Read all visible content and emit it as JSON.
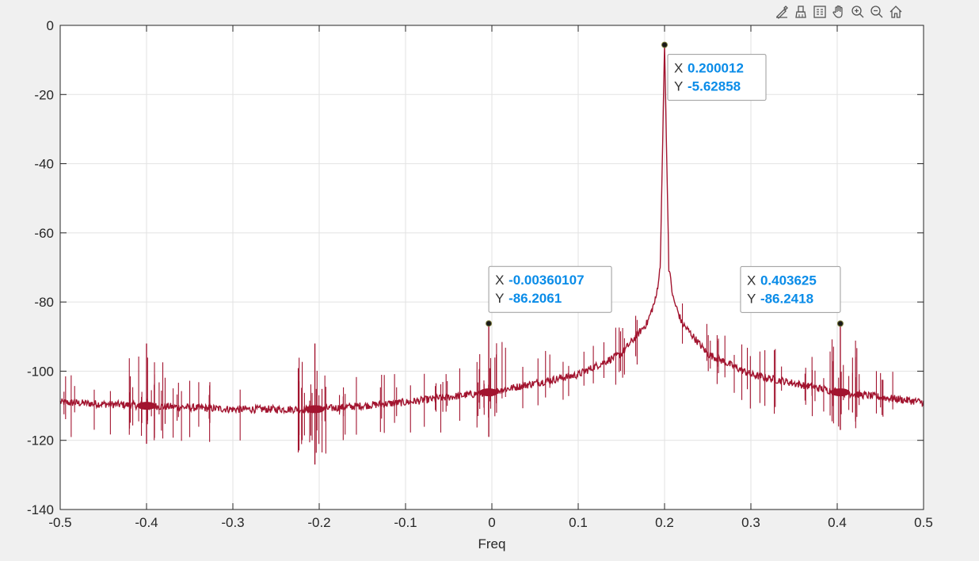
{
  "toolbar": {
    "icons": [
      "edit-plot-icon",
      "brush-icon",
      "legend-icon",
      "pan-icon",
      "zoom-in-icon",
      "zoom-out-icon",
      "home-icon"
    ]
  },
  "colors": {
    "figure_bg": "#f0f0f0",
    "axes_bg": "#ffffff",
    "grid": "#e2e2e2",
    "trace": "#a2142f",
    "datatip_value": "#0a8ce8",
    "datatip_label": "#333333"
  },
  "chart_data": {
    "type": "line",
    "title": "",
    "xlabel": "Freq",
    "ylabel": "",
    "xlim": [
      -0.5,
      0.5
    ],
    "ylim": [
      -140,
      0
    ],
    "xticks": [
      -0.5,
      -0.4,
      -0.3,
      -0.2,
      -0.1,
      0,
      0.1,
      0.2,
      0.3,
      0.4,
      0.5
    ],
    "xtick_labels": [
      "-0.5",
      "-0.4",
      "-0.3",
      "-0.2",
      "-0.1",
      "0",
      "0.1",
      "0.2",
      "0.3",
      "0.4",
      "0.5"
    ],
    "yticks": [
      0,
      -20,
      -40,
      -60,
      -80,
      -100,
      -120,
      -140
    ],
    "ytick_labels": [
      "0",
      "-20",
      "-40",
      "-60",
      "-80",
      "-100",
      "-120",
      "-140"
    ],
    "grid": true,
    "series": [
      {
        "noise_floor": {
          "x": [
            -0.5,
            -0.4,
            -0.3,
            -0.2,
            -0.1,
            0.0,
            0.1,
            0.15,
            0.18,
            0.19,
            0.195,
            0.2,
            0.205,
            0.21,
            0.22,
            0.25,
            0.3,
            0.4,
            0.5
          ],
          "y": [
            -109,
            -110,
            -111,
            -111,
            -109,
            -106,
            -101,
            -95,
            -86,
            -79,
            -70,
            -5.6,
            -70,
            -79,
            -86,
            -95,
            -101,
            -106,
            -109
          ]
        },
        "spurs": [
          {
            "x": -0.4,
            "y": -92,
            "low": -121
          },
          {
            "x": -0.205,
            "y": -92,
            "low": -127
          },
          {
            "x": -0.0036,
            "y": -86.2,
            "low": -119
          },
          {
            "x": 0.403625,
            "y": -86.2,
            "low": -117
          }
        ]
      }
    ],
    "datatips": [
      {
        "x_label": "X",
        "x_value": "0.200012",
        "y_label": "Y",
        "y_value": "-5.62858",
        "x": 0.200012,
        "y": -5.62858
      },
      {
        "x_label": "X",
        "x_value": "-0.00360107",
        "y_label": "Y",
        "y_value": "-86.2061",
        "x": -0.00360107,
        "y": -86.2061
      },
      {
        "x_label": "X",
        "x_value": "0.403625",
        "y_label": "Y",
        "y_value": "-86.2418",
        "x": 0.403625,
        "y": -86.2418
      }
    ]
  }
}
